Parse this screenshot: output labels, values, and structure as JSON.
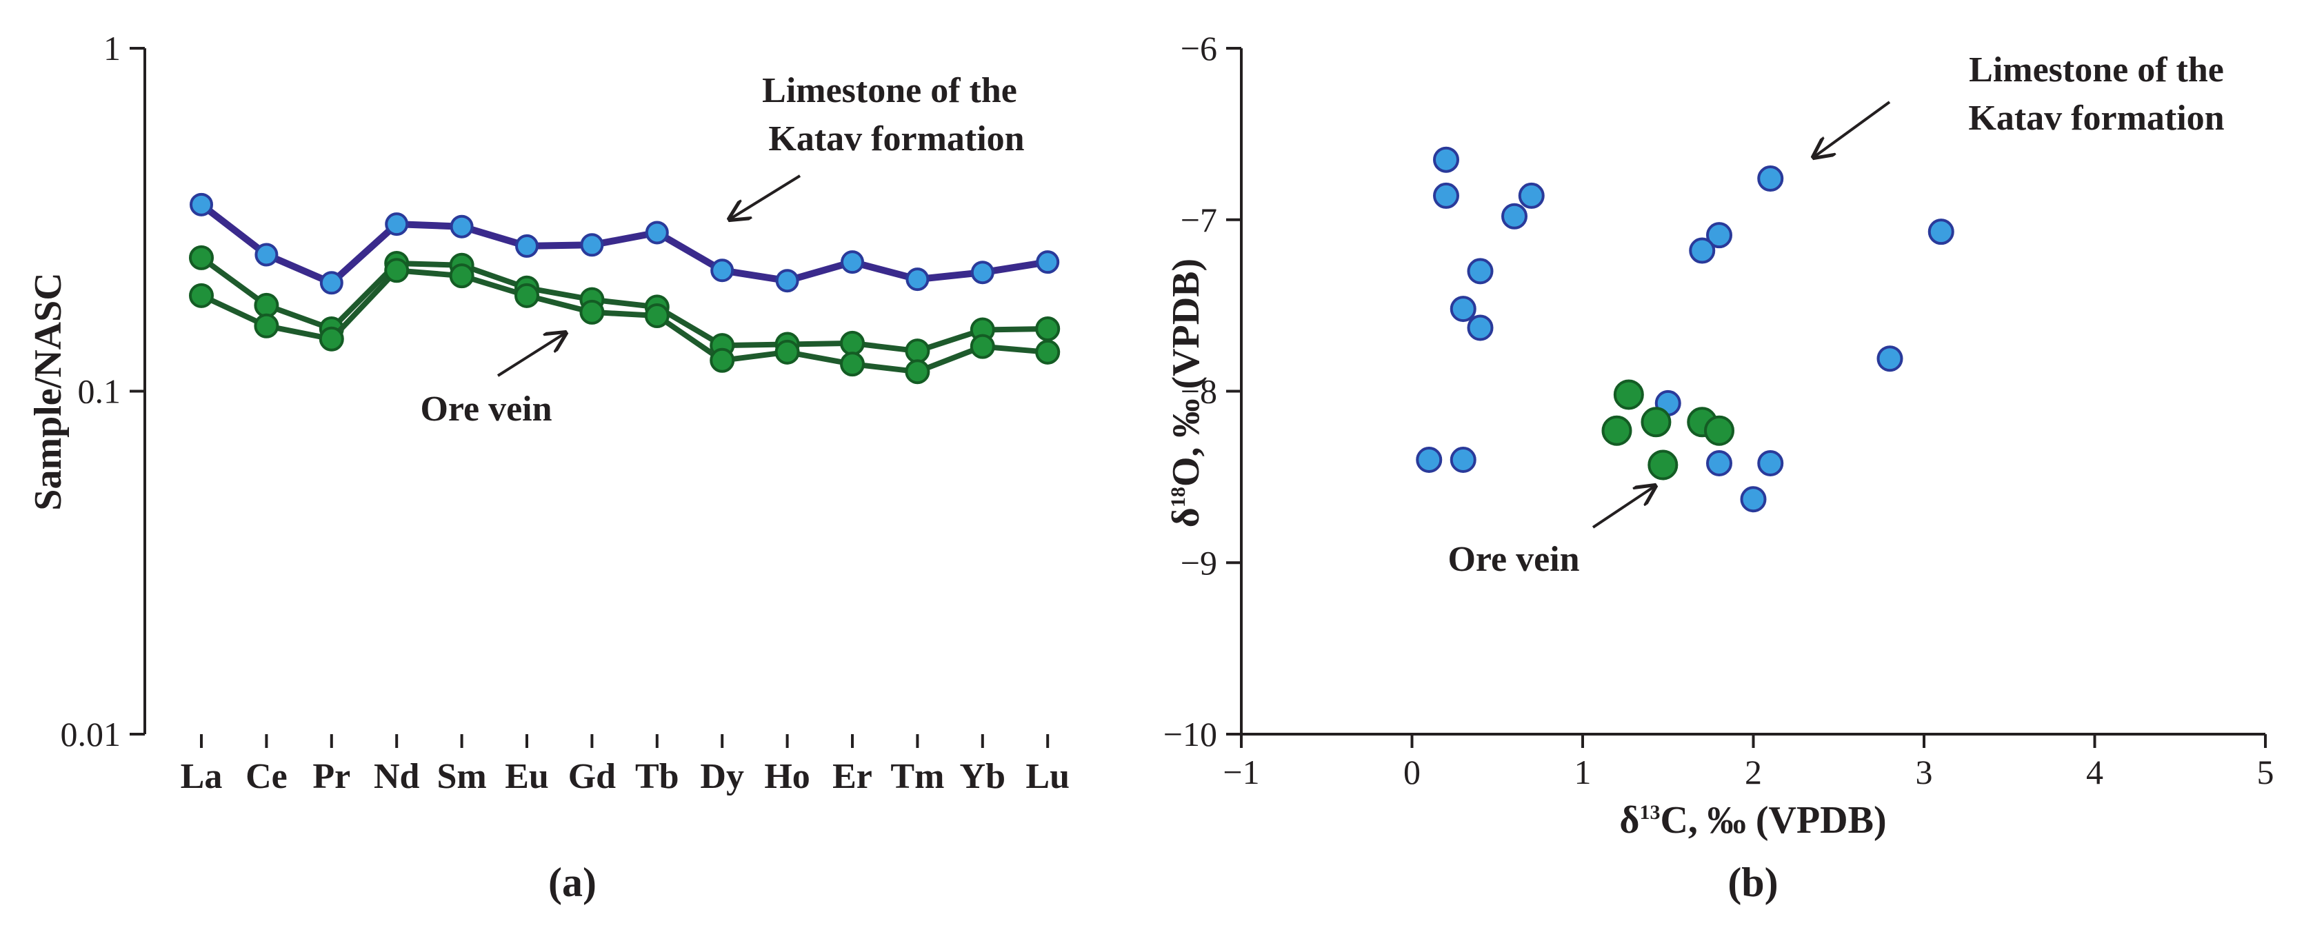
{
  "colors": {
    "limestone_line": "#3a2a8c",
    "ore_line": "#1e5a2c",
    "limestone_marker": "#3b9ee0",
    "limestone_marker_edge": "#2a3a9a",
    "ore_marker": "#20913a",
    "ore_marker_edge": "#145c24",
    "axis": "#231f20"
  },
  "chart_data": [
    {
      "panel": "(a)",
      "type": "line",
      "yscale": "log",
      "ylim": [
        0.01,
        1
      ],
      "yticks": [
        0.01,
        0.1,
        1
      ],
      "ytick_labels": [
        "0.01",
        "0.1",
        "1"
      ],
      "ylabel": "Sample/NASC",
      "xlabel": "",
      "categories": [
        "La",
        "Ce",
        "Pr",
        "Nd",
        "Sm",
        "Eu",
        "Gd",
        "Tb",
        "Dy",
        "Ho",
        "Er",
        "Tm",
        "Yb",
        "Lu"
      ],
      "series": [
        {
          "name": "Limestone of the Katav formation",
          "group": "limestone",
          "values": [
            0.35,
            0.25,
            0.207,
            0.307,
            0.302,
            0.265,
            0.267,
            0.29,
            0.225,
            0.21,
            0.238,
            0.212,
            0.222,
            0.238
          ]
        },
        {
          "name": "Ore vein",
          "group": "ore",
          "values": [
            0.245,
            0.178,
            0.152,
            0.236,
            0.233,
            0.2,
            0.185,
            0.176,
            0.136,
            0.137,
            0.138,
            0.131,
            0.151,
            0.152
          ]
        },
        {
          "name": "Ore vein",
          "group": "ore",
          "values": [
            0.19,
            0.155,
            0.142,
            0.225,
            0.217,
            0.19,
            0.17,
            0.166,
            0.123,
            0.13,
            0.12,
            0.114,
            0.135,
            0.13
          ]
        }
      ],
      "annotations": {
        "limestone_line1": "Limestone of the",
        "limestone_line2": "Katav formation",
        "ore": "Ore vein"
      }
    },
    {
      "panel": "(b)",
      "type": "scatter",
      "xlim": [
        -1,
        5
      ],
      "ylim": [
        -10,
        -6
      ],
      "xticks": [
        -1,
        0,
        1,
        2,
        3,
        4,
        5
      ],
      "xtick_labels": [
        "−1",
        "0",
        "1",
        "2",
        "3",
        "4",
        "5"
      ],
      "yticks": [
        -10,
        -9,
        -8,
        -7,
        -6
      ],
      "ytick_labels": [
        "−10",
        "−9",
        "−8",
        "−7",
        "−6"
      ],
      "xlabel": {
        "delta": "δ",
        "sup": "13",
        "rest": "C, ‰ (VPDB)"
      },
      "ylabel": {
        "delta": "δ",
        "sup": "18",
        "rest": "O, ‰ (VPDB)"
      },
      "series": [
        {
          "name": "Limestone of the Katav formation",
          "group": "limestone",
          "points": [
            [
              0.2,
              -6.65
            ],
            [
              0.2,
              -6.86
            ],
            [
              0.7,
              -6.86
            ],
            [
              0.6,
              -6.98
            ],
            [
              0.4,
              -7.3
            ],
            [
              0.3,
              -7.52
            ],
            [
              0.4,
              -7.63
            ],
            [
              0.1,
              -8.4
            ],
            [
              0.3,
              -8.4
            ],
            [
              2.1,
              -6.76
            ],
            [
              1.8,
              -7.09
            ],
            [
              1.7,
              -7.18
            ],
            [
              3.1,
              -7.07
            ],
            [
              2.8,
              -7.81
            ],
            [
              1.5,
              -8.07
            ],
            [
              1.8,
              -8.42
            ],
            [
              2.1,
              -8.42
            ],
            [
              2.0,
              -8.63
            ]
          ]
        },
        {
          "name": "Ore vein",
          "group": "ore",
          "points": [
            [
              1.27,
              -8.02
            ],
            [
              1.2,
              -8.23
            ],
            [
              1.43,
              -8.18
            ],
            [
              1.7,
              -8.18
            ],
            [
              1.8,
              -8.23
            ],
            [
              1.47,
              -8.43
            ]
          ]
        }
      ],
      "annotations": {
        "limestone_line1": "Limestone of the",
        "limestone_line2": "Katav formation",
        "ore": "Ore vein"
      }
    }
  ]
}
